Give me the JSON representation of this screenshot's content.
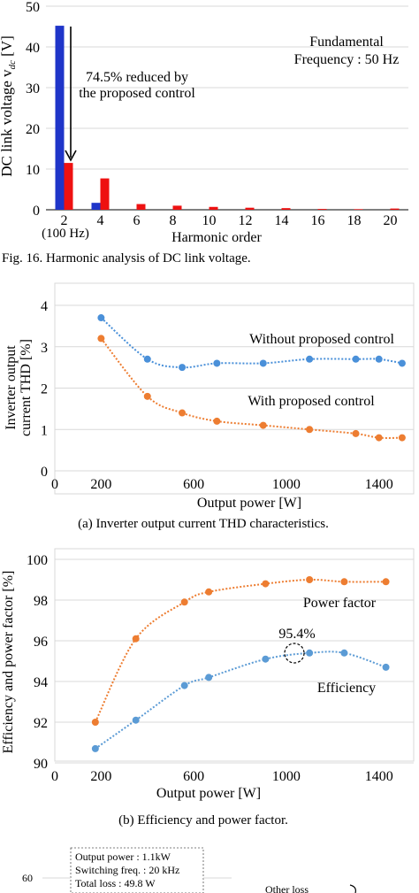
{
  "figure16": {
    "chart_data": {
      "type": "bar",
      "categories": [
        "2",
        "4",
        "6",
        "8",
        "10",
        "12",
        "14",
        "16",
        "18",
        "20"
      ],
      "category_sublabels": [
        "(100 Hz)",
        "",
        "",
        "",
        "",
        "",
        "",
        "",
        "",
        ""
      ],
      "series": [
        {
          "values": [
            45.2,
            1.7,
            0,
            0,
            0,
            0,
            0,
            0,
            0,
            0
          ],
          "color": "#1f35c9"
        },
        {
          "values": [
            11.5,
            7.7,
            1.4,
            1.0,
            0.7,
            0.5,
            0.4,
            0.2,
            0.15,
            0.3
          ],
          "color": "#ee1111"
        }
      ],
      "xlabel": "Harmonic order",
      "ylabel": "DC link voltage v",
      "ylabel_sub": "dc",
      "ylabel_unit": " [V]",
      "ylim": [
        0,
        50
      ],
      "yticks": [
        0,
        10,
        20,
        30,
        40,
        50
      ],
      "annotations": {
        "reduction_line1": "74.5% reduced by",
        "reduction_line2": "the proposed control",
        "freq_line1": "Fundamental",
        "freq_line2": "Frequency : 50 Hz"
      }
    },
    "caption": "Fig. 16. Harmonic analysis of DC link voltage."
  },
  "figureA": {
    "chart_data": {
      "type": "scatter",
      "series": [
        {
          "name": "Without proposed control",
          "color": "#4a90d9",
          "x": [
            200,
            400,
            550,
            700,
            900,
            1100,
            1300,
            1400,
            1500
          ],
          "y": [
            3.7,
            2.7,
            2.5,
            2.6,
            2.6,
            2.7,
            2.7,
            2.7,
            2.6
          ]
        },
        {
          "name": "With proposed control",
          "color": "#ed7d31",
          "x": [
            200,
            400,
            550,
            700,
            900,
            1100,
            1300,
            1400,
            1500
          ],
          "y": [
            3.2,
            1.8,
            1.4,
            1.2,
            1.1,
            1.0,
            0.9,
            0.8,
            0.8
          ]
        }
      ],
      "xlabel": "Output power [W]",
      "ylabel_line1": "Inverter output",
      "ylabel_line2": "current THD [%]",
      "xlim": [
        0,
        1550
      ],
      "xticks": [
        0,
        200,
        600,
        1000,
        1400
      ],
      "ylim": [
        0,
        4
      ],
      "yticks": [
        0,
        1,
        2,
        3,
        4
      ]
    },
    "caption": "(a) Inverter output current THD characteristics."
  },
  "figureB": {
    "chart_data": {
      "type": "scatter",
      "series": [
        {
          "name": "Power factor",
          "color": "#ed7d31",
          "x": [
            175,
            350,
            560,
            665,
            910,
            1100,
            1250,
            1430
          ],
          "y": [
            92.0,
            96.1,
            97.9,
            98.4,
            98.8,
            99.0,
            98.9,
            98.9
          ]
        },
        {
          "name": "Efficiency",
          "color": "#5b9bd5",
          "x": [
            175,
            350,
            560,
            665,
            910,
            1100,
            1250,
            1430
          ],
          "y": [
            90.7,
            92.1,
            93.8,
            94.2,
            95.1,
            95.4,
            95.4,
            94.7
          ]
        }
      ],
      "xlabel": "Output power [W]",
      "ylabel": "Efficiency and power factor [%]",
      "xlim": [
        0,
        1550
      ],
      "xticks": [
        0,
        200,
        600,
        1000,
        1400
      ],
      "ylim": [
        90,
        100
      ],
      "yticks": [
        90,
        92,
        94,
        96,
        98,
        100
      ],
      "peak_label": "95.4%"
    },
    "caption": "(b)  Efficiency and power factor."
  },
  "figureC": {
    "y_tick_top": "60",
    "info_lines": [
      "Output power   : 1.1kW",
      "Switching freq. : 20 kHz",
      "Total loss : 49.8 W"
    ],
    "other_loss_label": "Other loss"
  }
}
